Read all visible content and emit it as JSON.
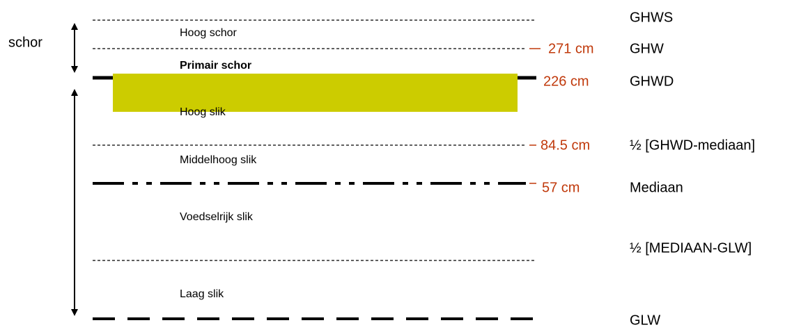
{
  "side_label": "schor",
  "zones": [
    "Hoog schor",
    "Primair schor",
    "Hoog slik",
    "Middelhoog slik",
    "Voedselrijk slik",
    "Laag slik"
  ],
  "levels": [
    {
      "label": "GHWS"
    },
    {
      "value": "271 cm",
      "label": "GHW"
    },
    {
      "value": "226 cm",
      "label": "GHWD"
    },
    {
      "value": "84.5 cm",
      "label": "½ [GHWD-mediaan]"
    },
    {
      "value": "57 cm",
      "label": "Mediaan"
    },
    {
      "label": "½ [MEDIAAN-GLW]"
    },
    {
      "label": "GLW"
    }
  ]
}
